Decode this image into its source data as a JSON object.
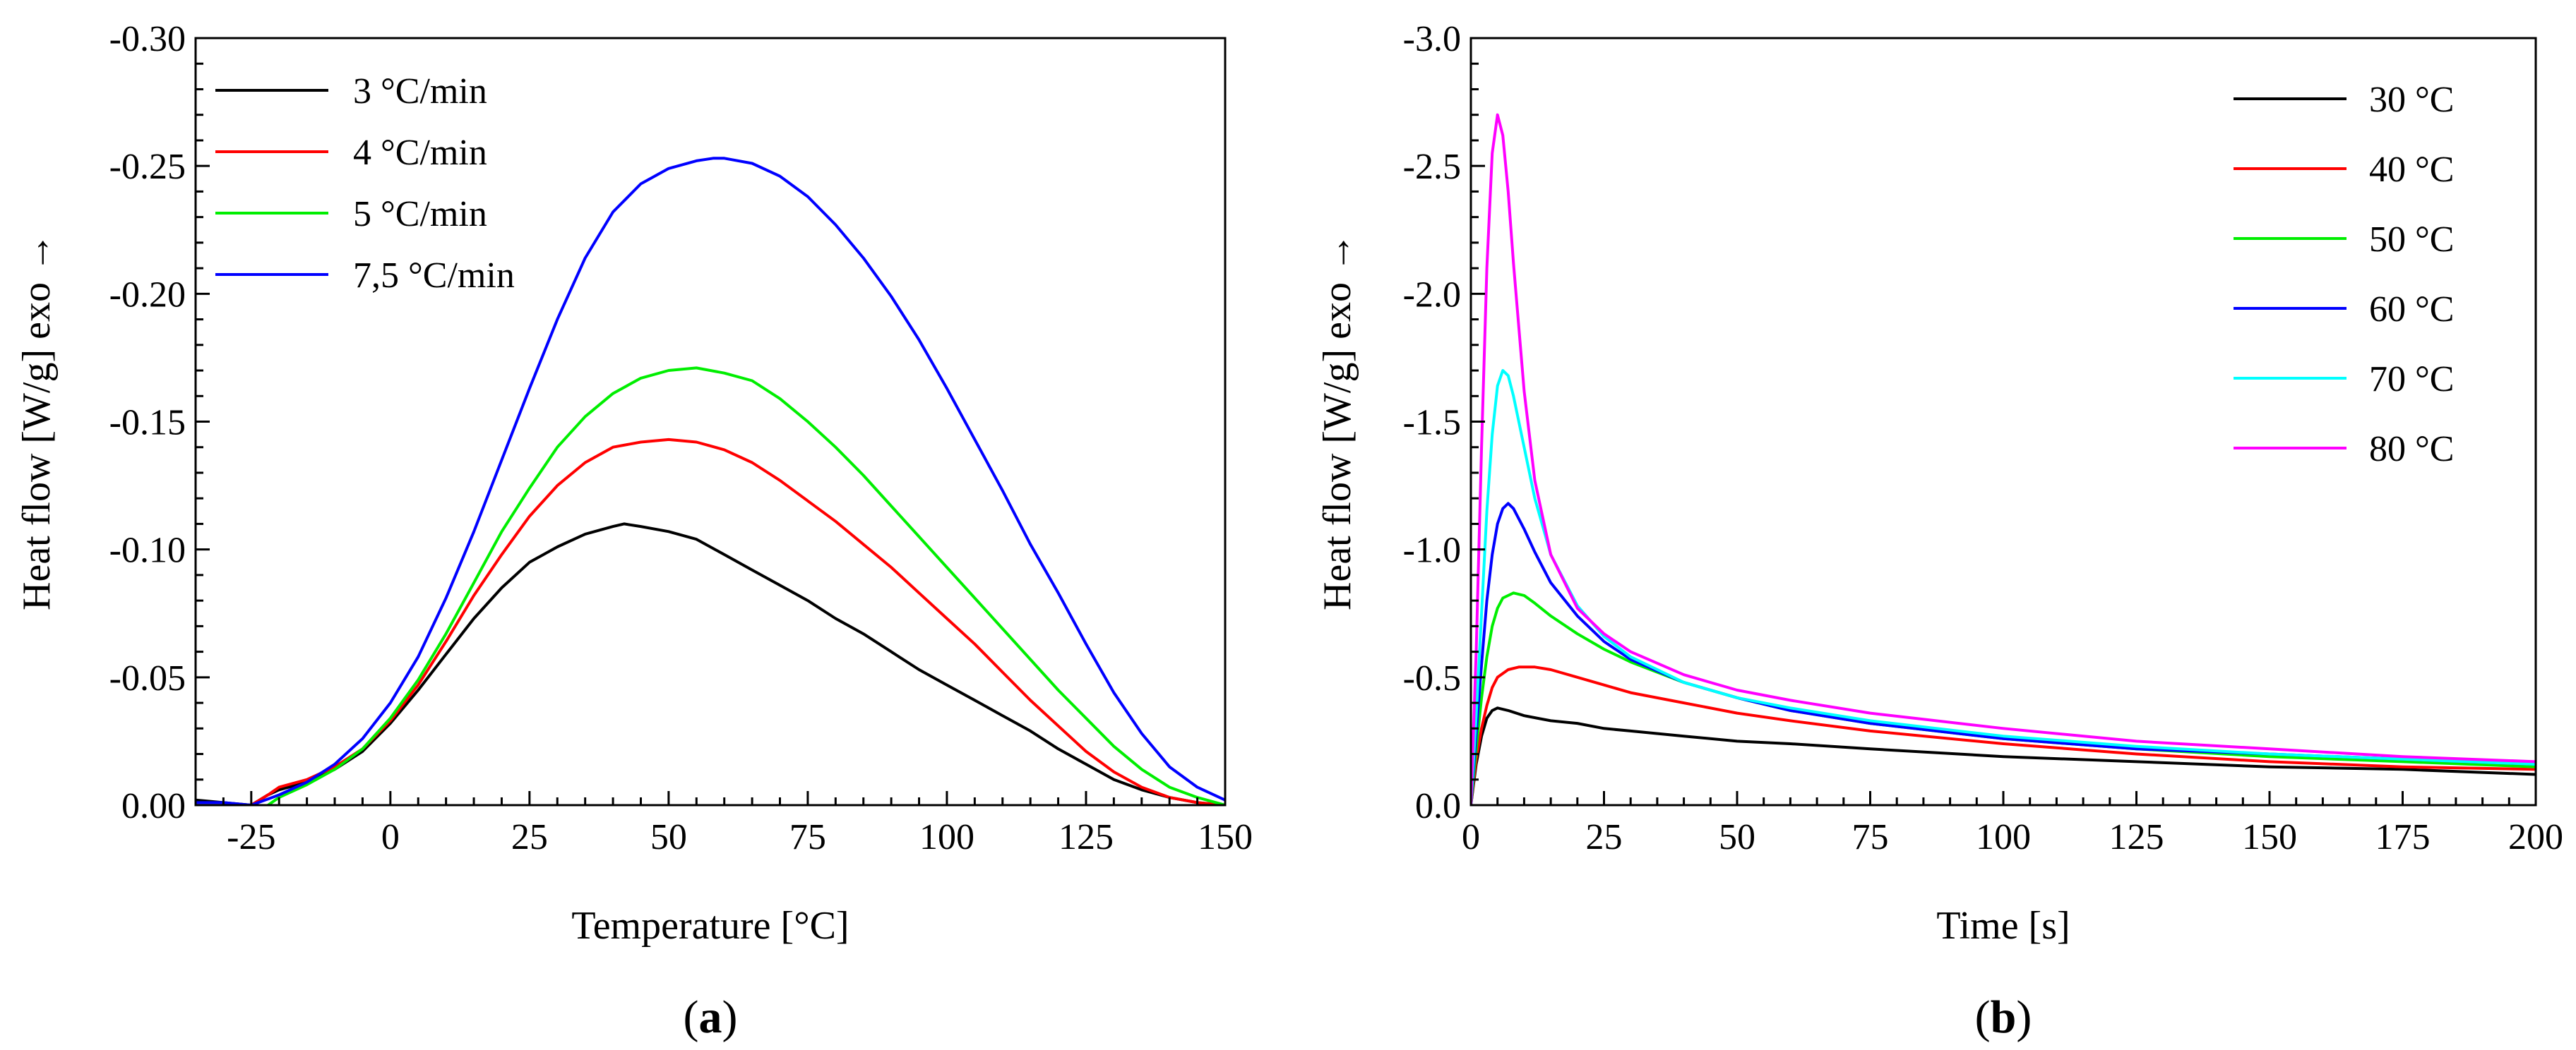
{
  "chart_data": [
    {
      "type": "line",
      "panel_label": "a",
      "title": "",
      "xlabel": "Temperature [°C]",
      "ylabel": "Heat flow [W/g] exo →",
      "xlim": [
        -35,
        150
      ],
      "ylim": [
        0.0,
        -0.3
      ],
      "x_ticks": [
        -25,
        0,
        25,
        50,
        75,
        100,
        125,
        150
      ],
      "x_tick_labels": [
        "-25",
        "0",
        "25",
        "50",
        "75",
        "100",
        "125",
        "150"
      ],
      "y_ticks": [
        0.0,
        -0.05,
        -0.1,
        -0.15,
        -0.2,
        -0.25,
        -0.3
      ],
      "y_tick_labels": [
        "0.00",
        "-0.05",
        "-0.10",
        "-0.15",
        "-0.20",
        "-0.25",
        "-0.30"
      ],
      "grid": false,
      "legend_position": "top-left",
      "series": [
        {
          "name": "3 °C/min",
          "color": "#000000",
          "x": [
            -35,
            -30,
            -25,
            -22,
            -20,
            -15,
            -10,
            -5,
            0,
            5,
            10,
            15,
            20,
            25,
            30,
            35,
            40,
            42,
            45,
            50,
            55,
            60,
            65,
            70,
            75,
            80,
            85,
            90,
            95,
            100,
            105,
            110,
            115,
            120,
            125,
            130,
            135,
            140,
            145,
            150
          ],
          "y": [
            -0.002,
            -0.001,
            0.0,
            -0.004,
            -0.006,
            -0.009,
            -0.014,
            -0.021,
            -0.032,
            -0.045,
            -0.059,
            -0.073,
            -0.085,
            -0.095,
            -0.101,
            -0.106,
            -0.109,
            -0.11,
            -0.109,
            -0.107,
            -0.104,
            -0.098,
            -0.092,
            -0.086,
            -0.08,
            -0.073,
            -0.067,
            -0.06,
            -0.053,
            -0.047,
            -0.041,
            -0.035,
            -0.029,
            -0.022,
            -0.016,
            -0.01,
            -0.006,
            -0.003,
            -0.001,
            0.0
          ]
        },
        {
          "name": "4 °C/min",
          "color": "#ff0000",
          "x": [
            -25,
            -22,
            -20,
            -15,
            -10,
            -5,
            0,
            5,
            10,
            15,
            20,
            25,
            30,
            35,
            40,
            45,
            50,
            55,
            60,
            65,
            70,
            75,
            80,
            85,
            90,
            95,
            100,
            105,
            110,
            115,
            120,
            125,
            130,
            135,
            140,
            145,
            150
          ],
          "y": [
            0.0,
            -0.004,
            -0.007,
            -0.01,
            -0.015,
            -0.022,
            -0.033,
            -0.047,
            -0.064,
            -0.082,
            -0.098,
            -0.113,
            -0.125,
            -0.134,
            -0.14,
            -0.142,
            -0.143,
            -0.142,
            -0.139,
            -0.134,
            -0.127,
            -0.119,
            -0.111,
            -0.102,
            -0.093,
            -0.083,
            -0.073,
            -0.063,
            -0.052,
            -0.041,
            -0.031,
            -0.021,
            -0.013,
            -0.007,
            -0.003,
            -0.001,
            0.0
          ]
        },
        {
          "name": "5 °C/min",
          "color": "#00ee00",
          "x": [
            -22,
            -20,
            -15,
            -10,
            -5,
            0,
            5,
            10,
            15,
            20,
            25,
            30,
            35,
            40,
            45,
            50,
            55,
            60,
            65,
            70,
            75,
            80,
            85,
            90,
            95,
            100,
            105,
            110,
            115,
            120,
            125,
            130,
            135,
            140,
            145,
            150
          ],
          "y": [
            0.0,
            -0.003,
            -0.008,
            -0.014,
            -0.022,
            -0.034,
            -0.049,
            -0.067,
            -0.087,
            -0.107,
            -0.124,
            -0.14,
            -0.152,
            -0.161,
            -0.167,
            -0.17,
            -0.171,
            -0.169,
            -0.166,
            -0.159,
            -0.15,
            -0.14,
            -0.129,
            -0.117,
            -0.105,
            -0.093,
            -0.081,
            -0.069,
            -0.057,
            -0.045,
            -0.034,
            -0.023,
            -0.014,
            -0.007,
            -0.003,
            0.0
          ]
        },
        {
          "name": "7,5 °C/min",
          "color": "#0000ff",
          "x": [
            -35,
            -30,
            -25,
            -20,
            -15,
            -10,
            -5,
            0,
            5,
            10,
            15,
            20,
            25,
            30,
            35,
            40,
            45,
            50,
            55,
            58,
            60,
            65,
            70,
            75,
            80,
            85,
            90,
            95,
            100,
            105,
            110,
            115,
            120,
            125,
            130,
            135,
            140,
            145,
            150
          ],
          "y": [
            -0.001,
            -0.001,
            0.0,
            -0.004,
            -0.009,
            -0.016,
            -0.026,
            -0.04,
            -0.058,
            -0.081,
            -0.107,
            -0.135,
            -0.163,
            -0.19,
            -0.214,
            -0.232,
            -0.243,
            -0.249,
            -0.252,
            -0.253,
            -0.253,
            -0.251,
            -0.246,
            -0.238,
            -0.227,
            -0.214,
            -0.199,
            -0.182,
            -0.163,
            -0.143,
            -0.123,
            -0.102,
            -0.083,
            -0.063,
            -0.044,
            -0.028,
            -0.015,
            -0.007,
            -0.002
          ]
        }
      ]
    },
    {
      "type": "line",
      "panel_label": "b",
      "title": "",
      "xlabel": "Time [s]",
      "ylabel": "Heat flow [W/g] exo →",
      "xlim": [
        0,
        200
      ],
      "ylim": [
        0.0,
        -3.0
      ],
      "x_ticks": [
        0,
        25,
        50,
        75,
        100,
        125,
        150,
        175,
        200
      ],
      "x_tick_labels": [
        "0",
        "25",
        "50",
        "75",
        "100",
        "125",
        "150",
        "175",
        "200"
      ],
      "y_ticks": [
        0.0,
        -0.5,
        -1.0,
        -1.5,
        -2.0,
        -2.5,
        -3.0
      ],
      "y_tick_labels": [
        "0.0",
        "-0.5",
        "-1.0",
        "-1.5",
        "-2.0",
        "-2.5",
        "-3.0"
      ],
      "grid": false,
      "legend_position": "top-right",
      "series": [
        {
          "name": "30 °C",
          "color": "#000000",
          "x": [
            0,
            1,
            2,
            3,
            4,
            5,
            7,
            10,
            15,
            20,
            25,
            30,
            40,
            50,
            60,
            75,
            100,
            125,
            150,
            175,
            200
          ],
          "y": [
            0.0,
            -0.16,
            -0.27,
            -0.34,
            -0.37,
            -0.38,
            -0.37,
            -0.35,
            -0.33,
            -0.32,
            -0.3,
            -0.29,
            -0.27,
            -0.25,
            -0.24,
            -0.22,
            -0.19,
            -0.17,
            -0.15,
            -0.14,
            -0.12
          ]
        },
        {
          "name": "40 °C",
          "color": "#ff0000",
          "x": [
            0,
            1,
            2,
            3,
            4,
            5,
            7,
            9,
            12,
            15,
            20,
            25,
            30,
            40,
            50,
            60,
            75,
            100,
            125,
            150,
            175,
            200
          ],
          "y": [
            0.0,
            -0.18,
            -0.3,
            -0.39,
            -0.46,
            -0.5,
            -0.53,
            -0.54,
            -0.54,
            -0.53,
            -0.5,
            -0.47,
            -0.44,
            -0.4,
            -0.36,
            -0.33,
            -0.29,
            -0.24,
            -0.2,
            -0.17,
            -0.15,
            -0.14
          ]
        },
        {
          "name": "50 °C",
          "color": "#00ee00",
          "x": [
            0,
            1,
            2,
            3,
            4,
            5,
            6,
            8,
            10,
            12,
            15,
            20,
            25,
            30,
            40,
            50,
            60,
            75,
            100,
            125,
            150,
            175,
            200
          ],
          "y": [
            0.0,
            -0.22,
            -0.42,
            -0.58,
            -0.7,
            -0.77,
            -0.81,
            -0.83,
            -0.82,
            -0.79,
            -0.74,
            -0.67,
            -0.61,
            -0.56,
            -0.48,
            -0.42,
            -0.37,
            -0.32,
            -0.26,
            -0.22,
            -0.19,
            -0.17,
            -0.15
          ]
        },
        {
          "name": "60 °C",
          "color": "#0000ff",
          "x": [
            0,
            1,
            2,
            3,
            4,
            5,
            6,
            7,
            8,
            10,
            12,
            15,
            20,
            25,
            30,
            40,
            50,
            60,
            75,
            100,
            125,
            150,
            175,
            200
          ],
          "y": [
            0.0,
            -0.28,
            -0.55,
            -0.8,
            -0.98,
            -1.1,
            -1.16,
            -1.18,
            -1.16,
            -1.08,
            -0.99,
            -0.87,
            -0.74,
            -0.64,
            -0.57,
            -0.48,
            -0.42,
            -0.37,
            -0.32,
            -0.26,
            -0.22,
            -0.2,
            -0.18,
            -0.16
          ]
        },
        {
          "name": "70 °C",
          "color": "#00ffff",
          "x": [
            0,
            1,
            2,
            3,
            4,
            5,
            6,
            7,
            8,
            10,
            12,
            15,
            20,
            25,
            30,
            40,
            50,
            60,
            75,
            100,
            125,
            150,
            175,
            200
          ],
          "y": [
            0.0,
            -0.35,
            -0.75,
            -1.15,
            -1.45,
            -1.64,
            -1.7,
            -1.68,
            -1.6,
            -1.4,
            -1.2,
            -0.98,
            -0.78,
            -0.66,
            -0.58,
            -0.48,
            -0.42,
            -0.38,
            -0.33,
            -0.27,
            -0.23,
            -0.2,
            -0.18,
            -0.16
          ]
        },
        {
          "name": "80 °C",
          "color": "#ff00ff",
          "x": [
            0,
            1,
            2,
            3,
            4,
            5,
            6,
            7,
            8,
            10,
            12,
            15,
            20,
            25,
            30,
            40,
            50,
            60,
            75,
            100,
            125,
            150,
            175,
            200
          ],
          "y": [
            0.0,
            -0.6,
            -1.4,
            -2.1,
            -2.55,
            -2.7,
            -2.62,
            -2.4,
            -2.12,
            -1.62,
            -1.27,
            -0.98,
            -0.77,
            -0.67,
            -0.6,
            -0.51,
            -0.45,
            -0.41,
            -0.36,
            -0.3,
            -0.25,
            -0.22,
            -0.19,
            -0.17
          ]
        }
      ]
    }
  ]
}
